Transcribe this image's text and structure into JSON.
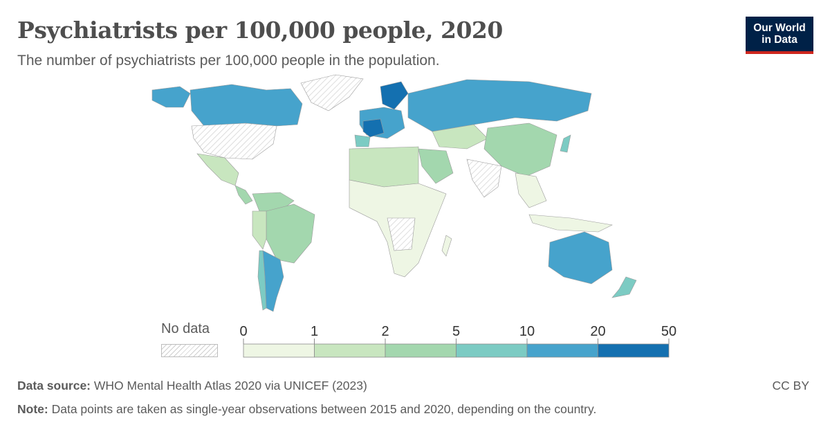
{
  "header": {
    "title": "Psychiatrists per 100,000 people, 2020",
    "subtitle": "The number of psychiatrists per 100,000 people in the population."
  },
  "logo": {
    "line1": "Our World",
    "line2": "in Data"
  },
  "legend": {
    "no_data_label": "No data",
    "ticks": [
      "0",
      "1",
      "2",
      "5",
      "10",
      "20",
      "50"
    ],
    "colors": [
      "#eef6e4",
      "#c8e6bf",
      "#a3d7ae",
      "#7ccbc3",
      "#46a3cc",
      "#1470b0"
    ]
  },
  "colors": {
    "no_data": "#e8e8e8"
  },
  "footer": {
    "source_label": "Data source:",
    "source_text": "WHO Mental Health Atlas 2020 via UNICEF (2023)",
    "note_label": "Note:",
    "note_text": "Data points are taken as single-year observations between 2015 and 2020, depending on the country.",
    "license": "CC BY"
  }
}
